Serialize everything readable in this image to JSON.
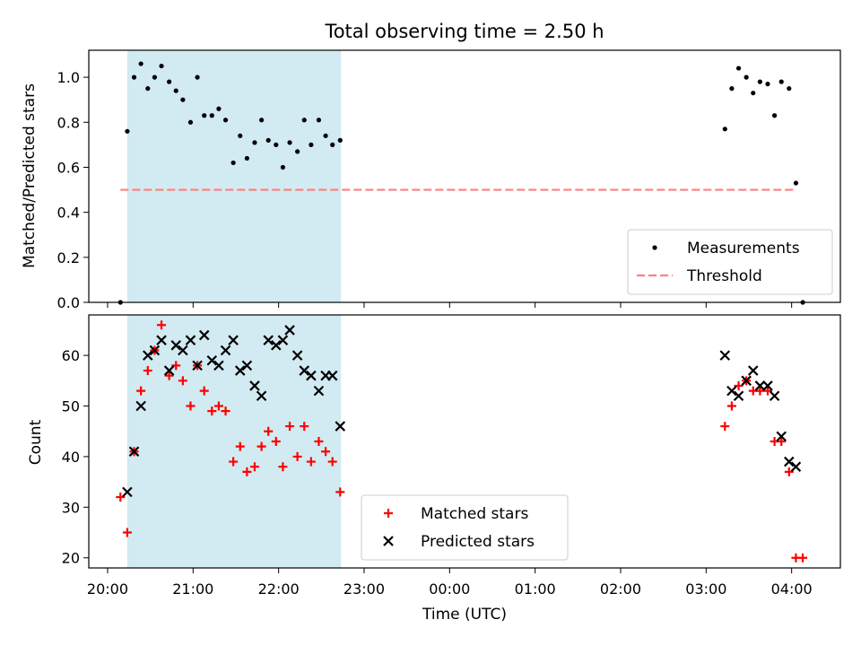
{
  "chart_data": [
    {
      "type": "scatter",
      "title": "Total observing time = 2.50 h",
      "ylabel": "Matched/Predicted stars",
      "xlabel": "",
      "ylim": [
        0,
        1.12
      ],
      "yticks": [
        0.0,
        0.2,
        0.4,
        0.6,
        0.8,
        1.0
      ],
      "ytick_labels": [
        "0.0",
        "0.2",
        "0.4",
        "0.6",
        "0.8",
        "1.0"
      ],
      "xlim_hours": [
        19.78,
        28.57
      ],
      "highlight_span_hours": [
        20.23,
        22.73
      ],
      "highlight_color": "#add8e6",
      "legend_position": "lower right",
      "legend": [
        "Measurements",
        "Threshold"
      ],
      "series": [
        {
          "name": "Measurements",
          "marker": "dot",
          "color": "#000000",
          "x": [
            20.15,
            20.23,
            20.31,
            20.39,
            20.47,
            20.55,
            20.63,
            20.72,
            20.8,
            20.88,
            20.97,
            21.05,
            21.13,
            21.22,
            21.3,
            21.38,
            21.47,
            21.55,
            21.63,
            21.72,
            21.8,
            21.88,
            21.97,
            22.05,
            22.13,
            22.22,
            22.3,
            22.38,
            22.47,
            22.55,
            22.63,
            22.72,
            27.22,
            27.3,
            27.38,
            27.47,
            27.55,
            27.63,
            27.72,
            27.8,
            27.88,
            27.97,
            28.05,
            28.13
          ],
          "y": [
            0.0,
            0.76,
            1.0,
            1.06,
            0.95,
            1.0,
            1.05,
            0.98,
            0.94,
            0.9,
            0.8,
            1.0,
            0.83,
            0.83,
            0.86,
            0.81,
            0.62,
            0.74,
            0.64,
            0.71,
            0.81,
            0.72,
            0.7,
            0.6,
            0.71,
            0.67,
            0.81,
            0.7,
            0.81,
            0.74,
            0.7,
            0.72,
            0.77,
            0.95,
            1.04,
            1.0,
            0.93,
            0.98,
            0.97,
            0.83,
            0.98,
            0.95,
            0.53,
            0.0
          ]
        },
        {
          "name": "Threshold",
          "type": "line",
          "style": "dashed",
          "color": "#ff7f7f",
          "x": [
            20.15,
            28.05
          ],
          "y": [
            0.5,
            0.5
          ]
        }
      ]
    },
    {
      "type": "scatter",
      "title": "",
      "ylabel": "Count",
      "xlabel": "Time (UTC)",
      "ylim": [
        18,
        68
      ],
      "yticks": [
        20,
        30,
        40,
        50,
        60
      ],
      "ytick_labels": [
        "20",
        "30",
        "40",
        "50",
        "60"
      ],
      "xlim_hours": [
        19.78,
        28.57
      ],
      "xticks_hours": [
        20,
        21,
        22,
        23,
        24,
        25,
        26,
        27,
        28
      ],
      "xtick_labels": [
        "20:00",
        "21:00",
        "22:00",
        "23:00",
        "00:00",
        "01:00",
        "02:00",
        "03:00",
        "04:00"
      ],
      "highlight_span_hours": [
        20.23,
        22.73
      ],
      "highlight_color": "#add8e6",
      "legend_position": "lower center",
      "legend": [
        "Matched stars",
        "Predicted stars"
      ],
      "series": [
        {
          "name": "Matched stars",
          "marker": "plus",
          "color": "#ff0000",
          "x": [
            20.15,
            20.23,
            20.31,
            20.39,
            20.47,
            20.55,
            20.63,
            20.72,
            20.8,
            20.88,
            20.97,
            21.05,
            21.13,
            21.22,
            21.3,
            21.38,
            21.47,
            21.55,
            21.63,
            21.72,
            21.8,
            21.88,
            21.97,
            22.05,
            22.13,
            22.22,
            22.3,
            22.38,
            22.47,
            22.55,
            22.63,
            22.72,
            27.22,
            27.3,
            27.38,
            27.47,
            27.55,
            27.63,
            27.72,
            27.8,
            27.88,
            27.97,
            28.05,
            28.13
          ],
          "y": [
            32,
            25,
            41,
            53,
            57,
            61,
            66,
            56,
            58,
            55,
            50,
            58,
            53,
            49,
            50,
            49,
            39,
            42,
            37,
            38,
            42,
            45,
            43,
            38,
            46,
            40,
            46,
            39,
            43,
            41,
            39,
            33,
            46,
            50,
            54,
            55,
            53,
            53,
            53,
            43,
            43,
            37,
            20,
            20
          ]
        },
        {
          "name": "Predicted stars",
          "marker": "x",
          "color": "#000000",
          "x": [
            20.23,
            20.31,
            20.39,
            20.47,
            20.55,
            20.63,
            20.72,
            20.8,
            20.88,
            20.97,
            21.05,
            21.13,
            21.22,
            21.3,
            21.38,
            21.47,
            21.55,
            21.63,
            21.72,
            21.8,
            21.88,
            21.97,
            22.05,
            22.13,
            22.22,
            22.3,
            22.38,
            22.47,
            22.55,
            22.63,
            22.72,
            27.22,
            27.3,
            27.38,
            27.47,
            27.55,
            27.63,
            27.72,
            27.8,
            27.88,
            27.97,
            28.05
          ],
          "y": [
            33,
            41,
            50,
            60,
            61,
            63,
            57,
            62,
            61,
            63,
            58,
            64,
            59,
            58,
            61,
            63,
            57,
            58,
            54,
            52,
            63,
            62,
            63,
            65,
            60,
            57,
            56,
            53,
            56,
            56,
            46,
            60,
            53,
            52,
            55,
            57,
            54,
            54,
            52,
            44,
            39,
            38
          ]
        }
      ]
    }
  ]
}
